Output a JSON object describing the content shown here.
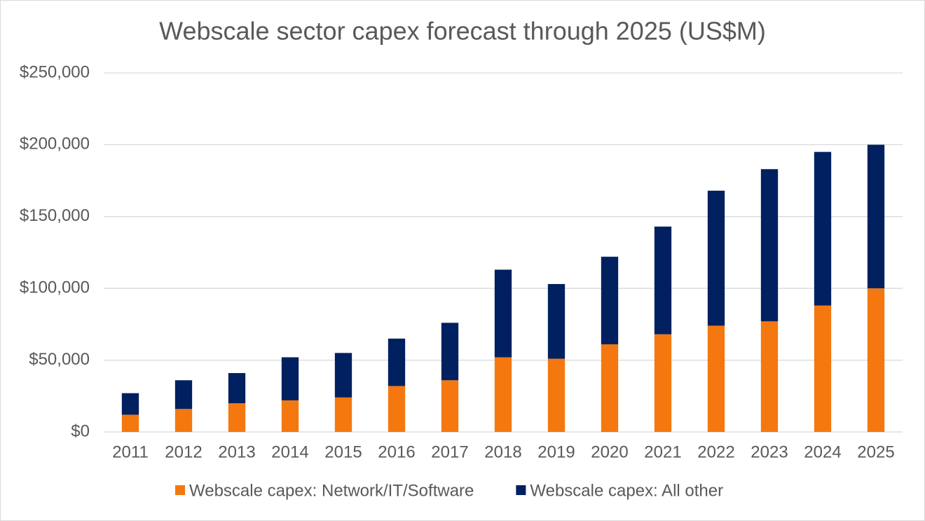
{
  "chart_data": {
    "type": "stacked_bar",
    "title": "Webscale sector capex forecast through 2025 (US$M)",
    "categories": [
      "2011",
      "2012",
      "2013",
      "2014",
      "2015",
      "2016",
      "2017",
      "2018",
      "2019",
      "2020",
      "2021",
      "2022",
      "2023",
      "2024",
      "2025"
    ],
    "series": [
      {
        "name": "Webscale capex: Network/IT/Software",
        "color": "#f4780f",
        "values": [
          12000,
          16000,
          20000,
          22000,
          24000,
          32000,
          36000,
          52000,
          51000,
          61000,
          68000,
          74000,
          77000,
          88000,
          100000
        ]
      },
      {
        "name": "Webscale capex: All other",
        "color": "#002060",
        "values": [
          15000,
          20000,
          21000,
          30000,
          31000,
          33000,
          40000,
          61000,
          52000,
          61000,
          75000,
          94000,
          106000,
          107000,
          100000
        ]
      }
    ],
    "ylim": [
      0,
      250000
    ],
    "yticks": [
      {
        "value": 0,
        "label": "$0"
      },
      {
        "value": 50000,
        "label": "$50,000"
      },
      {
        "value": 100000,
        "label": "$100,000"
      },
      {
        "value": 150000,
        "label": "$150,000"
      },
      {
        "value": 200000,
        "label": "$200,000"
      },
      {
        "value": 250000,
        "label": "$250,000"
      }
    ],
    "grid": true,
    "legend": "bottom"
  }
}
